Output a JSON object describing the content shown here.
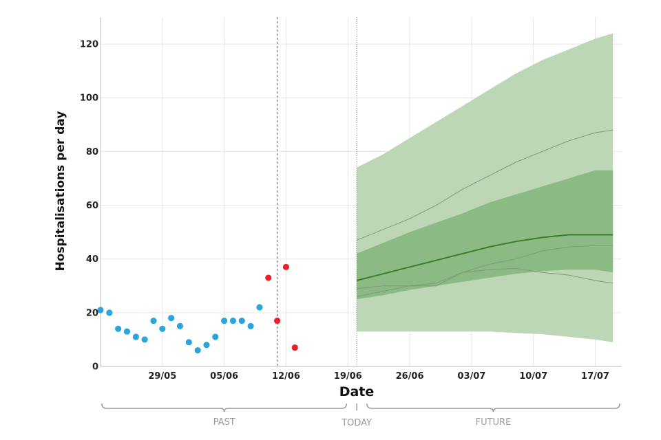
{
  "chart_data": {
    "type": "scatter",
    "xlabel": "Date",
    "ylabel": "Hospitalisations per day",
    "x_range": [
      "2022-05-22",
      "2022-07-20"
    ],
    "ylim": [
      0,
      130
    ],
    "y_ticks": [
      0,
      20,
      40,
      60,
      80,
      100,
      120
    ],
    "x_ticks": [
      {
        "date": "2022-05-29",
        "label": "29/05"
      },
      {
        "date": "2022-06-05",
        "label": "05/06"
      },
      {
        "date": "2022-06-12",
        "label": "12/06"
      },
      {
        "date": "2022-06-19",
        "label": "19/06"
      },
      {
        "date": "2022-06-26",
        "label": "26/06"
      },
      {
        "date": "2022-07-03",
        "label": "03/07"
      },
      {
        "date": "2022-07-10",
        "label": "10/07"
      },
      {
        "date": "2022-07-17",
        "label": "17/07"
      }
    ],
    "grid": true,
    "series": [
      {
        "color": "#2aa6dc",
        "points": [
          [
            "2022-05-22",
            21
          ],
          [
            "2022-05-23",
            20
          ],
          [
            "2022-05-24",
            14
          ],
          [
            "2022-05-25",
            13
          ],
          [
            "2022-05-26",
            11
          ],
          [
            "2022-05-27",
            10
          ],
          [
            "2022-05-28",
            17
          ],
          [
            "2022-05-29",
            14
          ],
          [
            "2022-05-30",
            18
          ],
          [
            "2022-05-31",
            15
          ],
          [
            "2022-06-01",
            9
          ],
          [
            "2022-06-02",
            6
          ],
          [
            "2022-06-03",
            8
          ],
          [
            "2022-06-04",
            11
          ],
          [
            "2022-06-05",
            17
          ],
          [
            "2022-06-06",
            17
          ],
          [
            "2022-06-07",
            17
          ],
          [
            "2022-06-08",
            15
          ],
          [
            "2022-06-09",
            22
          ]
        ]
      },
      {
        "color": "#e8212a",
        "points": [
          [
            "2022-06-10",
            33
          ],
          [
            "2022-06-11",
            17
          ],
          [
            "2022-06-12",
            37
          ],
          [
            "2022-06-13",
            7
          ]
        ]
      }
    ],
    "forecast": {
      "dates": [
        "2022-06-20",
        "2022-06-23",
        "2022-06-26",
        "2022-06-29",
        "2022-07-02",
        "2022-07-05",
        "2022-07-08",
        "2022-07-11",
        "2022-07-14",
        "2022-07-17",
        "2022-07-19"
      ],
      "median": [
        32,
        34.5,
        37,
        39.5,
        42,
        44.5,
        46.5,
        48,
        49,
        49,
        49
      ],
      "inner_low": [
        25,
        26.5,
        28.5,
        30,
        31.5,
        33,
        34.5,
        35.5,
        36,
        36,
        35
      ],
      "inner_high": [
        42,
        46,
        50,
        53.5,
        57,
        61,
        64,
        67,
        70,
        73,
        73
      ],
      "outer_low": [
        13,
        13,
        13,
        13,
        13,
        13,
        12.5,
        12,
        11,
        10,
        9
      ],
      "outer_high": [
        74,
        79,
        85,
        91,
        97,
        103,
        109,
        114,
        118,
        122,
        124
      ],
      "thin_upper": [
        47,
        51,
        55,
        60,
        66,
        71,
        76,
        80,
        84,
        87,
        88
      ],
      "thin_lower": [
        26,
        28,
        30,
        31,
        35,
        38,
        40,
        43,
        44.5,
        45,
        45
      ],
      "thin_third": [
        29,
        30,
        30,
        30,
        35,
        36,
        36.5,
        35,
        34,
        32,
        31
      ],
      "colors": {
        "outer": "#bcd6b6",
        "inner": "#8cba84",
        "median": "#3a7f27",
        "thin": "#7f9a7b"
      }
    },
    "vlines": [
      {
        "date": "2022-06-11",
        "color": "#555555",
        "dash": "3,3"
      },
      {
        "date": "2022-06-20",
        "color": "#777777",
        "dash": "1,2"
      }
    ],
    "periods": [
      {
        "label": "PAST",
        "from": "2022-05-22",
        "to": "2022-06-19"
      },
      {
        "label": "TODAY",
        "at": "2022-06-20"
      },
      {
        "label": "FUTURE",
        "from": "2022-06-21",
        "to": "2022-07-20"
      }
    ]
  }
}
